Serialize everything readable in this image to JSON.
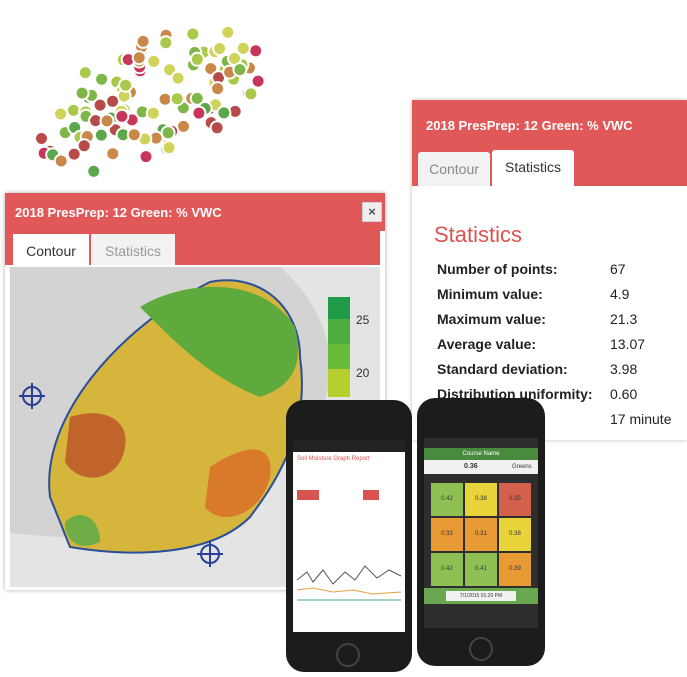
{
  "stats_panel": {
    "title": "2018 PresPrep: 12 Green: % VWC",
    "tabs": [
      "Contour",
      "Statistics"
    ],
    "heading": "Statistics",
    "rows": [
      [
        "Number of points:",
        "67"
      ],
      [
        "Minimum value:",
        "4.9"
      ],
      [
        "Maximum value:",
        "21.3"
      ],
      [
        "Average value:",
        "13.07"
      ],
      [
        "Standard deviation:",
        "3.98"
      ],
      [
        "Distribution uniformity:",
        "0.60"
      ]
    ],
    "extra_value": "17 minute"
  },
  "map_panel": {
    "title": "2018 PresPrep: 12 Green: % VWC",
    "tabs": [
      "Contour",
      "Statistics"
    ],
    "legend_labels": [
      "25",
      "20"
    ]
  },
  "phone_left": {
    "title": "Soil Moisture Graph Report"
  },
  "phone_right": {
    "title": "Course Name",
    "value": "0.36",
    "selector": "Greens",
    "grid": [
      [
        "0.42",
        "0.38",
        "0.35"
      ],
      [
        "0.33",
        "0.31",
        "0.38"
      ],
      [
        "0.42",
        "0.41",
        "0.39"
      ]
    ],
    "date": "7/1/2015 01:20 PM"
  }
}
